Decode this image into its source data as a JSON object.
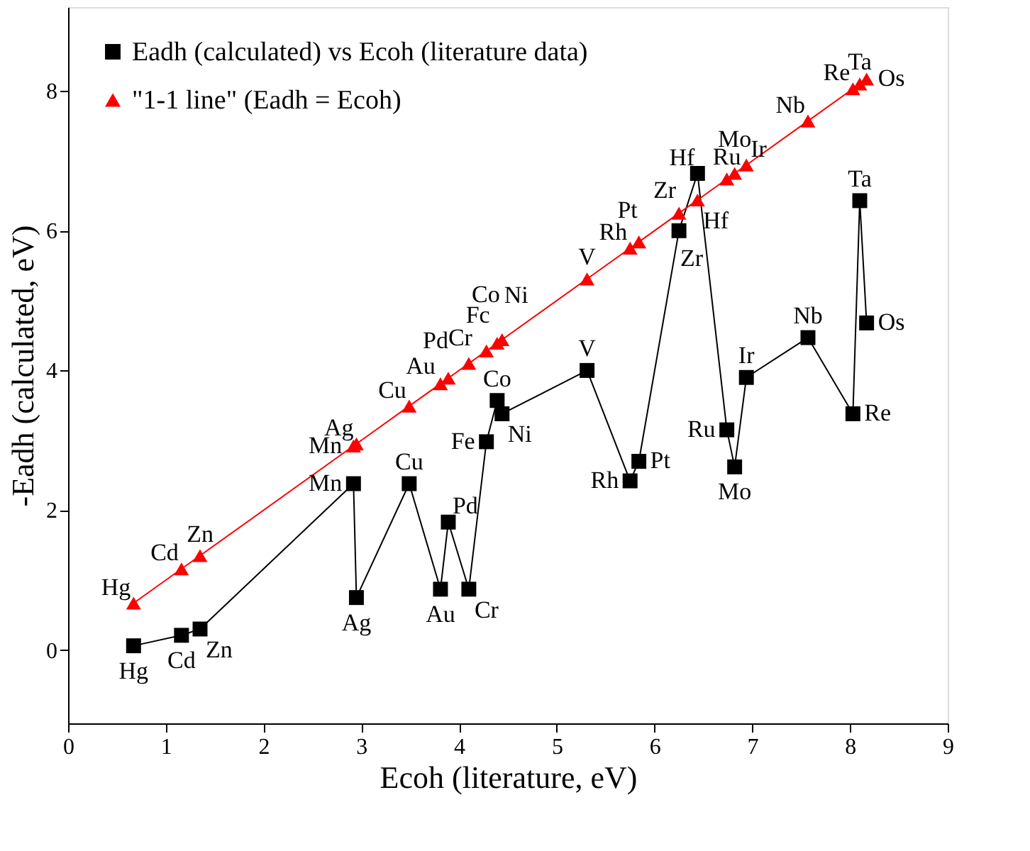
{
  "chart_data": {
    "type": "line",
    "xlabel": "Ecoh (literature, eV)",
    "ylabel": "-Eadh (calculated, eV)",
    "xlim": [
      0,
      9
    ],
    "xticks": [
      0,
      1,
      2,
      3,
      4,
      5,
      6,
      7,
      8,
      9
    ],
    "ylim": [
      -1.05,
      9.2
    ],
    "yticks": [
      0,
      2,
      4,
      6,
      8
    ],
    "grid": false,
    "legend": "top left",
    "line_style": "solid",
    "series": [
      {
        "name": "Eadh (calculated) vs Ecoh (literature data)",
        "color": "#000000",
        "marker": "square",
        "x": [
          0.67,
          1.16,
          1.35,
          2.92,
          2.95,
          3.49,
          3.81,
          3.89,
          4.1,
          4.28,
          4.39,
          4.44,
          5.31,
          5.75,
          5.84,
          6.25,
          6.44,
          6.74,
          6.82,
          6.94,
          7.57,
          8.03,
          8.1,
          8.17
        ],
        "values": [
          0.06,
          0.21,
          0.3,
          2.38,
          0.75,
          2.38,
          0.87,
          1.83,
          0.87,
          2.98,
          3.57,
          3.38,
          4.0,
          2.42,
          2.7,
          6.0,
          6.82,
          3.15,
          2.62,
          3.9,
          4.47,
          3.38,
          6.43,
          4.68
        ]
      },
      {
        "name": "\"1-1 line\" (Eadh = Ecoh)",
        "color": "#ff0000",
        "marker": "triangle",
        "x": [
          0.67,
          1.16,
          1.35,
          2.92,
          2.95,
          3.49,
          3.81,
          3.89,
          4.1,
          4.28,
          4.39,
          4.44,
          5.31,
          5.75,
          5.84,
          6.25,
          6.44,
          6.74,
          6.82,
          6.94,
          7.57,
          8.03,
          8.1,
          8.17
        ],
        "values": [
          0.67,
          1.16,
          1.35,
          2.92,
          2.95,
          3.49,
          3.81,
          3.89,
          4.1,
          4.28,
          4.39,
          4.44,
          5.31,
          5.75,
          5.84,
          6.25,
          6.44,
          6.74,
          6.82,
          6.94,
          7.57,
          8.03,
          8.1,
          8.17
        ]
      }
    ],
    "annotations": [
      {
        "text": "Hg",
        "x": 0.67,
        "y": 0.67
      },
      {
        "text": "Cd",
        "x": 1.16,
        "y": 1.16
      },
      {
        "text": "Zn",
        "x": 1.35,
        "y": 1.35
      },
      {
        "text": "Mn",
        "x": 2.92,
        "y": 2.92
      },
      {
        "text": "Ag",
        "x": 2.95,
        "y": 2.95
      },
      {
        "text": "Cu",
        "x": 3.49,
        "y": 3.49
      },
      {
        "text": "Au",
        "x": 3.81,
        "y": 3.81
      },
      {
        "text": "Pd",
        "x": 3.89,
        "y": 3.89
      },
      {
        "text": "Cr",
        "x": 4.1,
        "y": 4.1
      },
      {
        "text": "Fc",
        "x": 4.28,
        "y": 4.28
      },
      {
        "text": "Co",
        "x": 4.39,
        "y": 4.39
      },
      {
        "text": "Ni",
        "x": 4.44,
        "y": 4.44
      },
      {
        "text": "V",
        "x": 5.31,
        "y": 5.31
      },
      {
        "text": "Rh",
        "x": 5.75,
        "y": 5.75
      },
      {
        "text": "Pt",
        "x": 5.84,
        "y": 5.84
      },
      {
        "text": "Zr",
        "x": 6.25,
        "y": 6.25
      },
      {
        "text": "Hf",
        "x": 6.44,
        "y": 6.44
      },
      {
        "text": "Ru",
        "x": 6.74,
        "y": 6.74
      },
      {
        "text": "Mo",
        "x": 6.82,
        "y": 6.82
      },
      {
        "text": "Ir",
        "x": 6.94,
        "y": 6.94
      },
      {
        "text": "Nb",
        "x": 7.57,
        "y": 7.57
      },
      {
        "text": "Re",
        "x": 8.03,
        "y": 8.03
      },
      {
        "text": "Ta",
        "x": 8.1,
        "y": 8.1
      },
      {
        "text": "Os",
        "x": 8.17,
        "y": 8.17
      },
      {
        "text": "Hg",
        "x": 0.67,
        "y": 0.06
      },
      {
        "text": "Cd",
        "x": 1.16,
        "y": 0.21
      },
      {
        "text": "Zn",
        "x": 1.35,
        "y": 0.3
      },
      {
        "text": "Mn",
        "x": 2.92,
        "y": 2.38
      },
      {
        "text": "Ag",
        "x": 2.95,
        "y": 0.75
      },
      {
        "text": "Cu",
        "x": 3.49,
        "y": 2.38
      },
      {
        "text": "Au",
        "x": 3.81,
        "y": 0.87
      },
      {
        "text": "Pd",
        "x": 3.89,
        "y": 1.83
      },
      {
        "text": "Cr",
        "x": 4.1,
        "y": 0.87
      },
      {
        "text": "Fe",
        "x": 4.28,
        "y": 2.98
      },
      {
        "text": "Co",
        "x": 4.39,
        "y": 3.57
      },
      {
        "text": "Ni",
        "x": 4.44,
        "y": 3.38
      },
      {
        "text": "V",
        "x": 5.31,
        "y": 4.0
      },
      {
        "text": "Rh",
        "x": 5.75,
        "y": 2.42
      },
      {
        "text": "Pt",
        "x": 5.84,
        "y": 2.7
      },
      {
        "text": "Zr",
        "x": 6.25,
        "y": 6.0
      },
      {
        "text": "Hf",
        "x": 6.44,
        "y": 6.82
      },
      {
        "text": "Ru",
        "x": 6.74,
        "y": 3.15
      },
      {
        "text": "Mo",
        "x": 6.82,
        "y": 2.62
      },
      {
        "text": "Ir",
        "x": 6.94,
        "y": 3.9
      },
      {
        "text": "Nb",
        "x": 7.57,
        "y": 4.47
      },
      {
        "text": "Re",
        "x": 8.03,
        "y": 3.38
      },
      {
        "text": "Ta",
        "x": 8.1,
        "y": 6.43
      },
      {
        "text": "Os",
        "x": 8.17,
        "y": 4.68
      }
    ]
  }
}
